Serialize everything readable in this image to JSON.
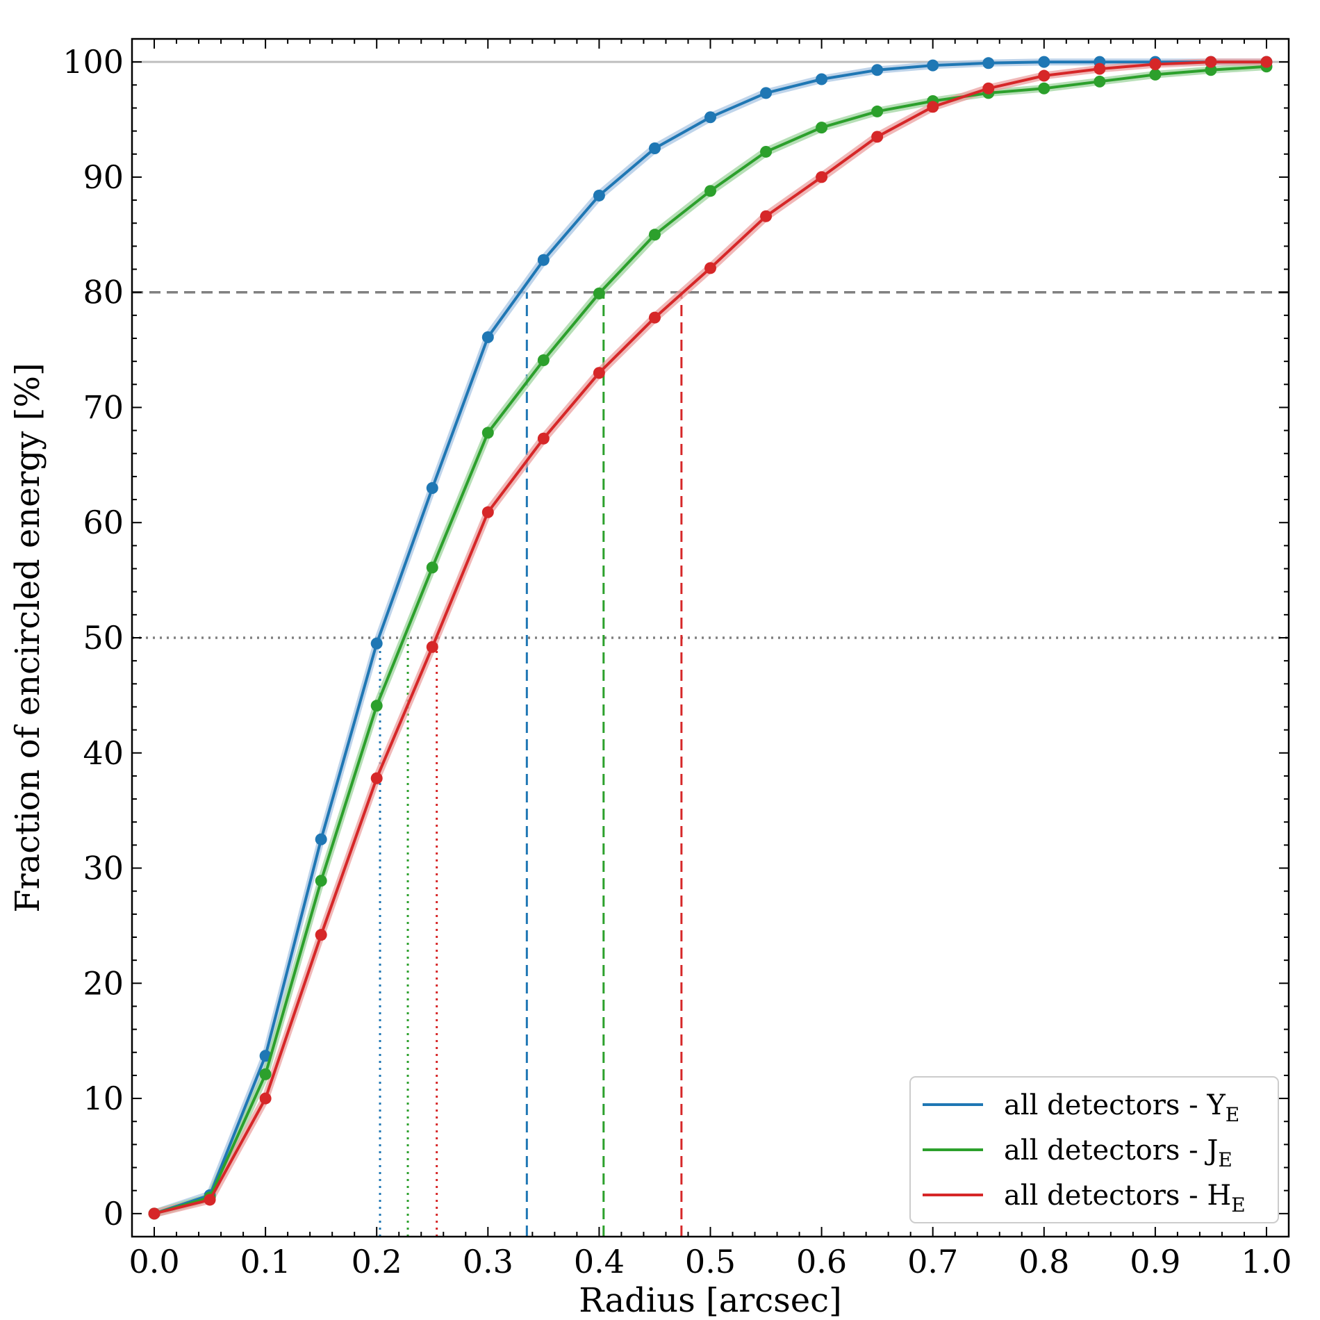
{
  "chart_data": {
    "type": "line",
    "xlabel": "Radius [arcsec]",
    "ylabel": "Fraction of encircled energy [%]",
    "xlim": [
      -0.02,
      1.02
    ],
    "ylim": [
      -2,
      102
    ],
    "x_ticks": [
      0.0,
      0.1,
      0.2,
      0.3,
      0.4,
      0.5,
      0.6,
      0.7,
      0.8,
      0.9,
      1.0
    ],
    "x_tick_labels": [
      "0.0",
      "0.1",
      "0.2",
      "0.3",
      "0.4",
      "0.5",
      "0.6",
      "0.7",
      "0.8",
      "0.9",
      "1.0"
    ],
    "y_ticks": [
      0,
      10,
      20,
      30,
      40,
      50,
      60,
      70,
      80,
      90,
      100
    ],
    "y_tick_labels": [
      "0",
      "10",
      "20",
      "30",
      "40",
      "50",
      "60",
      "70",
      "80",
      "90",
      "100"
    ],
    "grid": false,
    "legend_position": "bottom-right",
    "x": [
      0.0,
      0.05,
      0.1,
      0.15,
      0.2,
      0.25,
      0.3,
      0.35,
      0.4,
      0.45,
      0.5,
      0.55,
      0.6,
      0.65,
      0.7,
      0.75,
      0.8,
      0.85,
      0.9,
      0.95,
      1.0
    ],
    "series": [
      {
        "name": "all detectors - Y",
        "subscript": "E",
        "color": "#1f77b4",
        "band_color": "#a9c6e3",
        "values": [
          0.0,
          1.6,
          13.7,
          32.5,
          49.5,
          63.0,
          76.1,
          82.8,
          88.4,
          92.5,
          95.2,
          97.3,
          98.5,
          99.3,
          99.7,
          99.9,
          100.0,
          100.0,
          100.0,
          100.0,
          100.0
        ]
      },
      {
        "name": "all detectors - J",
        "subscript": "E",
        "color": "#2ca02c",
        "band_color": "#9fd49f",
        "values": [
          0.0,
          1.4,
          12.1,
          28.9,
          44.1,
          56.1,
          67.8,
          74.1,
          79.9,
          85.0,
          88.8,
          92.2,
          94.3,
          95.7,
          96.6,
          97.3,
          97.7,
          98.3,
          98.9,
          99.3,
          99.6
        ]
      },
      {
        "name": "all detectors - H",
        "subscript": "E",
        "color": "#d62728",
        "band_color": "#eba0a0",
        "values": [
          0.0,
          1.2,
          10.0,
          24.2,
          37.8,
          49.2,
          60.9,
          67.3,
          73.0,
          77.8,
          82.1,
          86.6,
          90.0,
          93.5,
          96.1,
          97.7,
          98.8,
          99.4,
          99.8,
          100.0,
          100.0
        ]
      }
    ],
    "reference_lines": [
      {
        "axis": "y",
        "value": 100,
        "style": "solid",
        "color": "#bfbfbf"
      },
      {
        "axis": "y",
        "value": 80,
        "style": "dashed",
        "color": "#808080"
      },
      {
        "axis": "y",
        "value": 50,
        "style": "dotted",
        "color": "#808080"
      }
    ],
    "markers_ee50": [
      {
        "series": "Y",
        "x": 0.203,
        "color": "#1f77b4"
      },
      {
        "series": "J",
        "x": 0.228,
        "color": "#2ca02c"
      },
      {
        "series": "H",
        "x": 0.254,
        "color": "#d62728"
      }
    ],
    "markers_ee80": [
      {
        "series": "Y",
        "x": 0.335,
        "color": "#1f77b4"
      },
      {
        "series": "J",
        "x": 0.404,
        "color": "#2ca02c"
      },
      {
        "series": "H",
        "x": 0.474,
        "color": "#d62728"
      }
    ]
  }
}
